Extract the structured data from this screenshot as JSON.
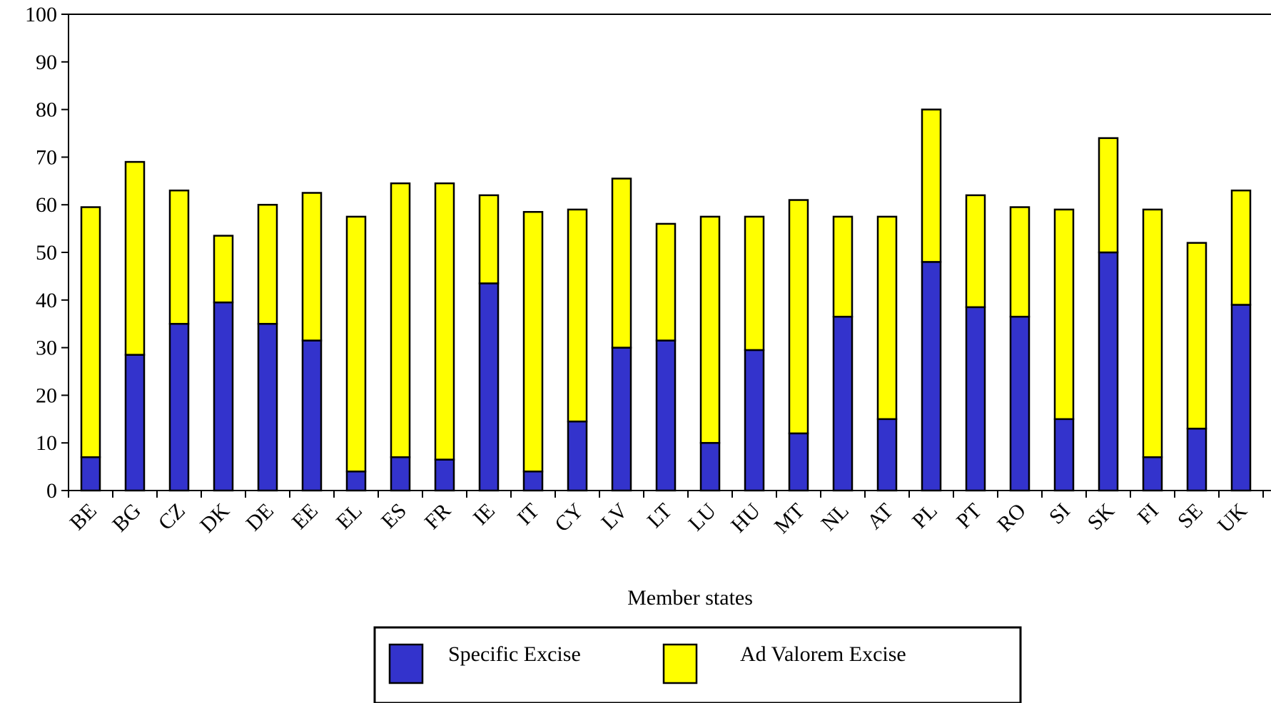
{
  "chart_data": {
    "type": "bar",
    "stacked": true,
    "categories": [
      "BE",
      "BG",
      "CZ",
      "DK",
      "DE",
      "EE",
      "EL",
      "ES",
      "FR",
      "IE",
      "IT",
      "CY",
      "LV",
      "LT",
      "LU",
      "HU",
      "MT",
      "NL",
      "AT",
      "PL",
      "PT",
      "RO",
      "SI",
      "SK",
      "FI",
      "SE",
      "UK"
    ],
    "series": [
      {
        "name": "Specific Excise",
        "color": "#3333cc",
        "values": [
          7,
          28.5,
          35,
          39.5,
          35,
          31.5,
          4,
          7,
          6.5,
          43.5,
          4,
          14.5,
          30,
          31.5,
          10,
          29.5,
          12,
          36.5,
          15,
          48,
          38.5,
          36.5,
          15,
          50,
          7,
          13,
          39
        ]
      },
      {
        "name": "Ad Valorem Excise",
        "color": "#ffff00",
        "values": [
          52.5,
          40.5,
          28,
          14,
          25,
          31,
          53.5,
          57.5,
          58,
          18.5,
          54.5,
          44.5,
          35.5,
          24.5,
          47.5,
          28,
          49,
          21,
          42.5,
          32,
          23.5,
          23,
          44,
          24,
          52,
          39,
          24
        ]
      }
    ],
    "title": "",
    "xlabel": "Member states",
    "ylabel": "",
    "ylim": [
      0,
      100
    ],
    "yticks": [
      0,
      10,
      20,
      30,
      40,
      50,
      60,
      70,
      80,
      90,
      100
    ],
    "grid": false,
    "legend_position": "bottom"
  }
}
